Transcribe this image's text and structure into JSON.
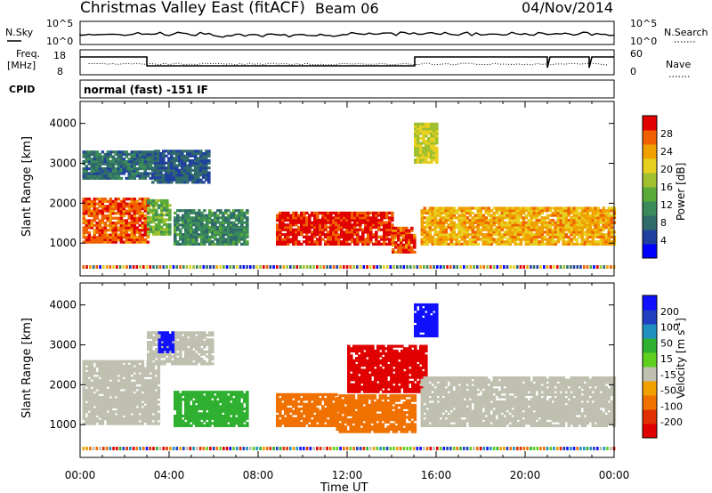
{
  "header": {
    "title": "Christmas Valley East (fitACF)",
    "beam": "Beam 06",
    "date": "04/Nov/2014"
  },
  "summary_panels": {
    "nsky_label": "N.Sky",
    "nsky_ticks": [
      "10^5",
      "10^0"
    ],
    "nsearch_label": "N.Search",
    "nsearch_ticks": [
      "10^5",
      "10^0"
    ],
    "freq_label_1": "Freq.",
    "freq_label_2": "[MHz]",
    "freq_ticks": [
      "18",
      "8"
    ],
    "nave_label": "Nave",
    "nave_ticks": [
      "60",
      "0"
    ],
    "cpid_label": "CPID",
    "cpid_value": "normal (fast) -151 IF"
  },
  "colors": {
    "power_scale": [
      "#0000ff",
      "#2040a0",
      "#306a6a",
      "#3a8a5a",
      "#5aaa3a",
      "#a0c030",
      "#e8d020",
      "#f0a000",
      "#f06000",
      "#e00000"
    ],
    "velocity_scale": [
      "#1010ff",
      "#2040c0",
      "#2090c0",
      "#30b030",
      "#60d020",
      "#c0c0b0",
      "#f0a000",
      "#f07000",
      "#e03000",
      "#e00000"
    ]
  },
  "chart_data": [
    {
      "type": "heatmap",
      "title": "",
      "xlabel": "Time UT",
      "ylabel": "Slant Range [km]",
      "xlim": [
        "00:00",
        "24:00"
      ],
      "ylim": [
        180,
        4550
      ],
      "x_ticks": [
        "00:00",
        "04:00",
        "08:00",
        "12:00",
        "16:00",
        "20:00",
        "00:00"
      ],
      "y_ticks": [
        1000,
        2000,
        3000,
        4000
      ],
      "colorbar": {
        "label": "Power [dB]",
        "ticks": [
          4,
          8,
          12,
          16,
          20,
          24,
          28
        ],
        "range": [
          0,
          30
        ]
      },
      "regions": [
        {
          "t": [
            0.1,
            3.0
          ],
          "r": [
            1000,
            2100
          ],
          "value": 26
        },
        {
          "t": [
            3.0,
            4.0
          ],
          "r": [
            1200,
            2100
          ],
          "value": 14
        },
        {
          "t": [
            4.2,
            7.5
          ],
          "r": [
            950,
            1800
          ],
          "value": 10
        },
        {
          "t": [
            8.8,
            14.0
          ],
          "r": [
            950,
            1750
          ],
          "value": 28
        },
        {
          "t": [
            14.0,
            15.0
          ],
          "r": [
            750,
            1400
          ],
          "value": 26
        },
        {
          "t": [
            15.3,
            24.0
          ],
          "r": [
            950,
            1900
          ],
          "value": 22
        },
        {
          "t": [
            0.1,
            3.5
          ],
          "r": [
            2600,
            3300
          ],
          "value": 8
        },
        {
          "t": [
            3.2,
            5.8
          ],
          "r": [
            2500,
            3300
          ],
          "value": 6
        },
        {
          "t": [
            15.0,
            16.0
          ],
          "r": [
            3000,
            4000
          ],
          "value": 18
        }
      ]
    },
    {
      "type": "heatmap",
      "title": "",
      "xlabel": "Time UT",
      "ylabel": "Slant Range [km]",
      "xlim": [
        "00:00",
        "24:00"
      ],
      "ylim": [
        180,
        4550
      ],
      "x_ticks": [
        "00:00",
        "04:00",
        "08:00",
        "12:00",
        "16:00",
        "20:00",
        "00:00"
      ],
      "y_ticks": [
        1000,
        2000,
        3000,
        4000
      ],
      "colorbar": {
        "label": "Velocity [m s^-1]",
        "ticks": [
          200,
          100,
          50,
          15,
          -15,
          -50,
          -100,
          -200
        ]
      },
      "regions": [
        {
          "t": [
            0.1,
            3.5
          ],
          "r": [
            1000,
            2600
          ],
          "value": 0
        },
        {
          "t": [
            3.0,
            6.0
          ],
          "r": [
            2500,
            3300
          ],
          "value": 0
        },
        {
          "t": [
            3.5,
            4.2
          ],
          "r": [
            2800,
            3300
          ],
          "value": 200
        },
        {
          "t": [
            4.2,
            7.5
          ],
          "r": [
            950,
            1800
          ],
          "value": 60
        },
        {
          "t": [
            8.8,
            11.5
          ],
          "r": [
            950,
            1750
          ],
          "value": -80
        },
        {
          "t": [
            11.5,
            15.0
          ],
          "r": [
            800,
            1750
          ],
          "value": -60
        },
        {
          "t": [
            12.0,
            15.5
          ],
          "r": [
            1800,
            3000
          ],
          "value": -200
        },
        {
          "t": [
            15.0,
            16.0
          ],
          "r": [
            3200,
            4000
          ],
          "value": 200
        },
        {
          "t": [
            15.3,
            24.0
          ],
          "r": [
            950,
            2200
          ],
          "value": 0
        }
      ]
    }
  ],
  "axis": {
    "ylabel": "Slant Range [km]",
    "xlabel": "Time UT",
    "power_label": "Power [dB]",
    "velocity_label": "Velocity [m s",
    "velocity_sup": "-1",
    "velocity_close": "]"
  }
}
